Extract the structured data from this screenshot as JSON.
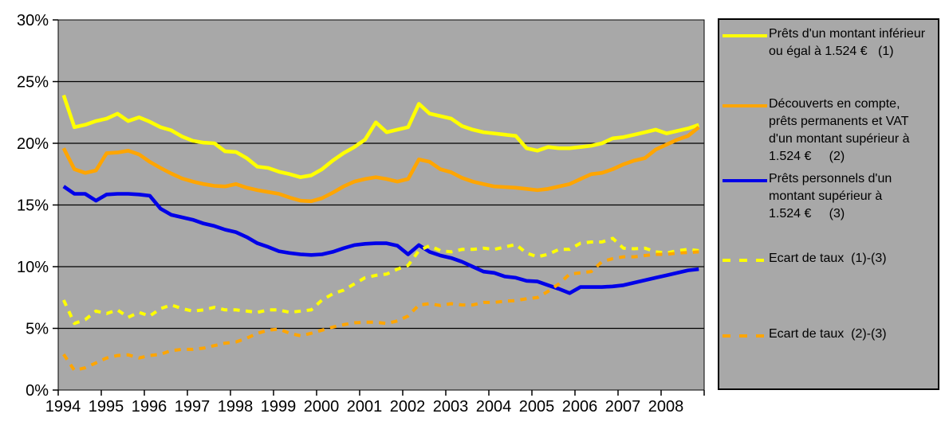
{
  "chart_data": {
    "type": "line",
    "title": "",
    "xlabel": "",
    "ylabel": "",
    "ylim": [
      0,
      30
    ],
    "y_tick_labels": [
      "0%",
      "5%",
      "10%",
      "15%",
      "20%",
      "25%",
      "30%"
    ],
    "x_tick_labels": [
      "1994",
      "1995",
      "1996",
      "1997",
      "1998",
      "1999",
      "2000",
      "2001",
      "2002",
      "2003",
      "2004",
      "2005",
      "2006",
      "2007",
      "2008"
    ],
    "x_frequency": "quarterly",
    "grid": "horizontal-black",
    "plot_background_color": "#a8a8a8",
    "legend_position": "right",
    "series": [
      {
        "name": "Prêts d'un montant inférieur ou égal à 1.524 €   (1)",
        "color": "#ffff00",
        "style": "solid",
        "values": [
          23.9,
          21.3,
          21.5,
          21.8,
          22.0,
          22.4,
          21.8,
          22.1,
          21.75,
          21.3,
          21.05,
          20.55,
          20.2,
          20.05,
          20.0,
          19.35,
          19.3,
          18.8,
          18.1,
          18.0,
          17.7,
          17.5,
          17.25,
          17.4,
          17.9,
          18.6,
          19.2,
          19.7,
          20.3,
          21.7,
          20.9,
          21.1,
          21.3,
          23.2,
          22.4,
          22.2,
          22.0,
          21.4,
          21.1,
          20.9,
          20.8,
          20.7,
          20.6,
          19.6,
          19.4,
          19.7,
          19.6,
          19.6,
          19.7,
          19.8,
          20.0,
          20.4,
          20.5,
          20.7,
          20.9,
          21.1,
          20.8,
          21.0,
          21.2,
          21.5
        ]
      },
      {
        "name": "Découverts en compte, prêts permanents et VAT d'un montant supérieur à 1.524 €     (2)",
        "color": "#ffa500",
        "style": "solid",
        "values": [
          19.6,
          17.9,
          17.6,
          17.8,
          19.2,
          19.25,
          19.4,
          19.1,
          18.5,
          18.0,
          17.55,
          17.15,
          16.9,
          16.7,
          16.55,
          16.5,
          16.7,
          16.4,
          16.2,
          16.05,
          15.9,
          15.6,
          15.35,
          15.3,
          15.55,
          16.0,
          16.5,
          16.9,
          17.1,
          17.25,
          17.1,
          16.9,
          17.1,
          18.7,
          18.5,
          17.9,
          17.65,
          17.2,
          16.9,
          16.7,
          16.5,
          16.45,
          16.4,
          16.3,
          16.2,
          16.3,
          16.5,
          16.7,
          17.1,
          17.5,
          17.6,
          17.9,
          18.3,
          18.6,
          18.8,
          19.5,
          19.9,
          20.3,
          20.6,
          21.3
        ]
      },
      {
        "name": "Prêts personnels d'un montant supérieur à 1.524 €     (3)",
        "color": "#0000e8",
        "style": "solid",
        "values": [
          16.5,
          15.9,
          15.9,
          15.35,
          15.85,
          15.9,
          15.9,
          15.85,
          15.75,
          14.7,
          14.2,
          14.0,
          13.8,
          13.5,
          13.3,
          13.0,
          12.8,
          12.4,
          11.9,
          11.6,
          11.25,
          11.1,
          11.0,
          10.95,
          11.0,
          11.2,
          11.5,
          11.75,
          11.85,
          11.9,
          11.9,
          11.7,
          11.0,
          11.75,
          11.2,
          10.9,
          10.7,
          10.4,
          10.0,
          9.6,
          9.5,
          9.2,
          9.1,
          8.85,
          8.8,
          8.5,
          8.2,
          7.85,
          8.35,
          8.35,
          8.35,
          8.4,
          8.5,
          8.7,
          8.9,
          9.1,
          9.3,
          9.5,
          9.7,
          9.8
        ]
      },
      {
        "name": "Ecart de taux  (1)-(3)",
        "color": "#ffff00",
        "style": "dashed",
        "values": [
          7.3,
          5.4,
          5.7,
          6.4,
          6.2,
          6.5,
          5.9,
          6.3,
          6.0,
          6.6,
          6.9,
          6.6,
          6.4,
          6.5,
          6.7,
          6.5,
          6.5,
          6.4,
          6.3,
          6.5,
          6.5,
          6.3,
          6.4,
          6.5,
          7.3,
          7.8,
          8.1,
          8.6,
          9.1,
          9.3,
          9.4,
          9.8,
          10.1,
          11.3,
          11.7,
          11.3,
          11.2,
          11.4,
          11.4,
          11.5,
          11.4,
          11.6,
          11.8,
          11.1,
          10.8,
          11.0,
          11.4,
          11.4,
          11.9,
          12.0,
          12.0,
          12.3,
          11.5,
          11.45,
          11.5,
          11.2,
          11.1,
          11.3,
          11.4,
          11.3
        ]
      },
      {
        "name": "Ecart de taux  (2)-(3)",
        "color": "#ffa500",
        "style": "dashed",
        "values": [
          2.9,
          1.6,
          1.8,
          2.2,
          2.6,
          2.8,
          2.85,
          2.6,
          2.8,
          2.9,
          3.2,
          3.3,
          3.3,
          3.4,
          3.6,
          3.8,
          3.9,
          4.2,
          4.6,
          4.85,
          4.95,
          4.6,
          4.4,
          4.6,
          4.85,
          5.1,
          5.3,
          5.45,
          5.5,
          5.5,
          5.4,
          5.6,
          6.0,
          6.9,
          7.0,
          6.85,
          7.0,
          6.9,
          6.9,
          7.1,
          7.1,
          7.2,
          7.25,
          7.4,
          7.5,
          8.0,
          8.6,
          9.4,
          9.5,
          9.6,
          10.4,
          10.65,
          10.8,
          10.8,
          10.9,
          11.0,
          11.0,
          11.1,
          11.15,
          11.2
        ]
      }
    ],
    "legend_entries": [
      {
        "series": 0,
        "lines": [
          "Prêts d'un montant inférieur",
          "ou égal à 1.524 €   (1)"
        ]
      },
      {
        "series": 1,
        "lines": [
          "Découverts en compte,",
          "prêts permanents et VAT",
          "d'un montant supérieur à",
          "1.524 €     (2)"
        ]
      },
      {
        "series": 2,
        "lines": [
          "Prêts personnels d'un",
          "montant supérieur à",
          "1.524 €     (3)"
        ]
      },
      {
        "series": 3,
        "lines": [
          "Ecart de taux  (1)-(3)"
        ]
      },
      {
        "series": 4,
        "lines": [
          "Ecart de taux  (2)-(3)"
        ]
      }
    ]
  }
}
